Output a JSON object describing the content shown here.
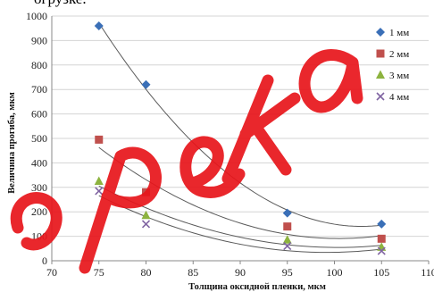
{
  "caption": "огрузке.",
  "chart_data": {
    "type": "scatter",
    "title": "",
    "xlabel": "Толщина оксидной пленки, мкм",
    "ylabel": "Величина прогиба, мкм",
    "xlim": [
      70,
      110
    ],
    "ylim": [
      0,
      1000
    ],
    "xticks": [
      "70",
      "75",
      "80",
      "85",
      "90",
      "95",
      "100",
      "105",
      "110"
    ],
    "yticks": [
      "0",
      "100",
      "200",
      "300",
      "400",
      "500",
      "600",
      "700",
      "800",
      "900",
      "1000"
    ],
    "grid": "horizontal",
    "legend_position": "right",
    "trendlines": "polynomial",
    "series": [
      {
        "name": "1 мм",
        "marker": "diamond",
        "color": "#3a6fb7",
        "x": [
          75,
          80,
          95,
          105
        ],
        "y": [
          960,
          720,
          195,
          150
        ]
      },
      {
        "name": "2 мм",
        "marker": "square",
        "color": "#c0504d",
        "x": [
          75,
          80,
          95,
          105
        ],
        "y": [
          495,
          280,
          140,
          90
        ]
      },
      {
        "name": "3 мм",
        "marker": "triangle",
        "color": "#8db33f",
        "x": [
          75,
          80,
          95,
          105
        ],
        "y": [
          325,
          185,
          85,
          55
        ]
      },
      {
        "name": "4 мм",
        "marker": "x",
        "color": "#8064a2",
        "x": [
          75,
          80,
          95,
          105
        ],
        "y": [
          285,
          150,
          60,
          40
        ]
      }
    ]
  },
  "watermark": {
    "text": "опека",
    "color": "#e8151b"
  }
}
